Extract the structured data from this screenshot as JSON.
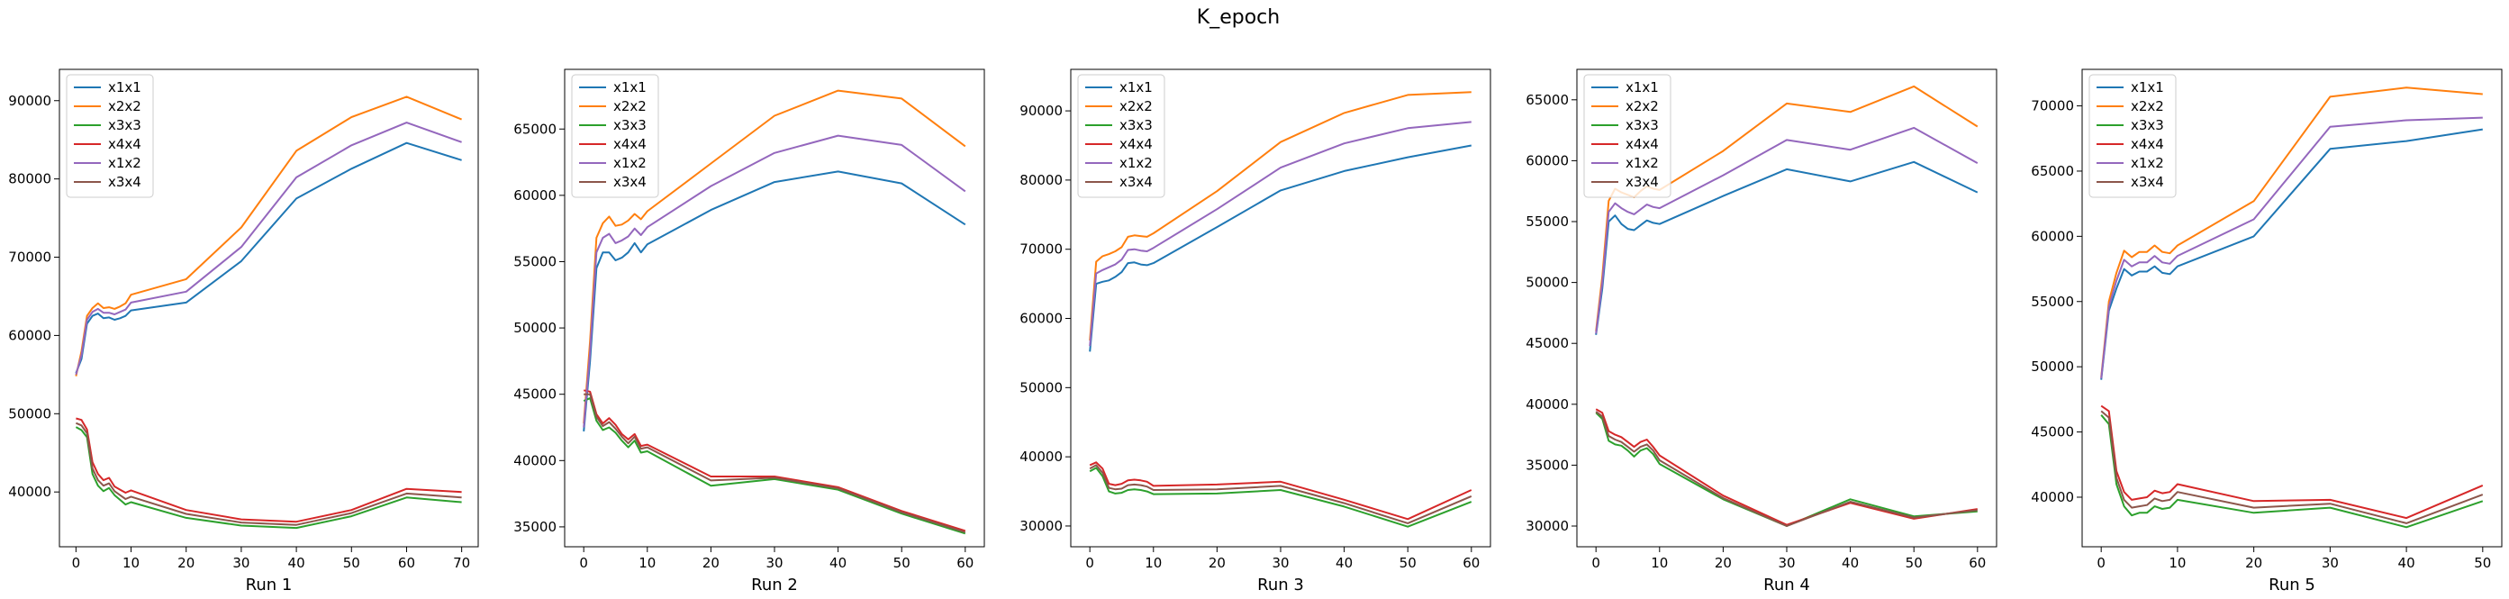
{
  "figure": {
    "title": "K_epoch"
  },
  "chart_data": [
    {
      "type": "line",
      "title": "",
      "xlabel": "Run 1",
      "ylabel": "",
      "xlim": [
        -3,
        73
      ],
      "ylim": [
        33000,
        94000
      ],
      "xticks": [
        0,
        10,
        20,
        30,
        40,
        50,
        60,
        70
      ],
      "yticks": [
        40000,
        50000,
        60000,
        70000,
        80000,
        90000
      ],
      "legend": "top-left",
      "x": [
        0,
        1,
        2,
        3,
        4,
        5,
        6,
        7,
        8,
        9,
        10,
        20,
        30,
        40,
        50,
        60,
        70
      ],
      "series": [
        {
          "name": "x1x1",
          "color": "#1f77b4",
          "values": [
            55200,
            57000,
            61500,
            62500,
            62800,
            62200,
            62300,
            62000,
            62200,
            62500,
            63200,
            64200,
            69500,
            77500,
            81300,
            84600,
            82400
          ]
        },
        {
          "name": "x2x2",
          "color": "#ff7f0e",
          "values": [
            54800,
            58000,
            62500,
            63500,
            64100,
            63500,
            63600,
            63400,
            63700,
            64100,
            65200,
            67200,
            73800,
            83600,
            87900,
            90500,
            87600
          ]
        },
        {
          "name": "x3x3",
          "color": "#2ca02c",
          "values": [
            48300,
            47900,
            47000,
            42300,
            40800,
            40100,
            40500,
            39600,
            39000,
            38400,
            38700,
            36700,
            35700,
            35400,
            36900,
            39300,
            38700
          ]
        },
        {
          "name": "x4x4",
          "color": "#d62728",
          "values": [
            49400,
            49200,
            48000,
            43800,
            42300,
            41500,
            41800,
            40700,
            40300,
            39900,
            40200,
            37700,
            36500,
            36200,
            37700,
            40400,
            40000
          ]
        },
        {
          "name": "x1x2",
          "color": "#9467bd",
          "values": [
            55000,
            57500,
            62000,
            63000,
            63400,
            62900,
            62900,
            62700,
            63000,
            63300,
            64200,
            65600,
            71300,
            80200,
            84300,
            87200,
            84700
          ]
        },
        {
          "name": "x3x4",
          "color": "#8c564b",
          "values": [
            48800,
            48500,
            47500,
            43000,
            41500,
            40800,
            41100,
            40100,
            39600,
            39100,
            39400,
            37200,
            36100,
            35800,
            37300,
            39800,
            39300
          ]
        }
      ]
    },
    {
      "type": "line",
      "title": "",
      "xlabel": "Run 2",
      "ylabel": "",
      "xlim": [
        -3,
        63
      ],
      "ylim": [
        33500,
        69500
      ],
      "xticks": [
        0,
        10,
        20,
        30,
        40,
        50,
        60
      ],
      "yticks": [
        35000,
        40000,
        45000,
        50000,
        55000,
        60000,
        65000
      ],
      "legend": "top-left",
      "x": [
        0,
        1,
        2,
        3,
        4,
        5,
        6,
        7,
        8,
        9,
        10,
        20,
        30,
        40,
        50,
        60
      ],
      "series": [
        {
          "name": "x1x1",
          "color": "#1f77b4",
          "values": [
            42200,
            47500,
            54500,
            55700,
            55700,
            55100,
            55300,
            55700,
            56400,
            55700,
            56300,
            58900,
            61000,
            61800,
            60900,
            57800
          ]
        },
        {
          "name": "x2x2",
          "color": "#ff7f0e",
          "values": [
            42800,
            49000,
            56800,
            57900,
            58400,
            57700,
            57800,
            58100,
            58600,
            58200,
            58800,
            62400,
            66000,
            67900,
            67300,
            63700
          ]
        },
        {
          "name": "x3x3",
          "color": "#2ca02c",
          "values": [
            44500,
            44700,
            43000,
            42300,
            42500,
            42100,
            41500,
            41000,
            41500,
            40600,
            40700,
            38100,
            38600,
            37800,
            36000,
            34500
          ]
        },
        {
          "name": "x4x4",
          "color": "#d62728",
          "values": [
            45300,
            45200,
            43500,
            42800,
            43200,
            42700,
            42000,
            41600,
            42000,
            41100,
            41200,
            38800,
            38800,
            38000,
            36200,
            34700
          ]
        },
        {
          "name": "x1x2",
          "color": "#9467bd",
          "values": [
            42500,
            48200,
            55700,
            56800,
            57100,
            56400,
            56600,
            56900,
            57500,
            57000,
            57600,
            60700,
            63200,
            64500,
            63800,
            60300
          ]
        },
        {
          "name": "x3x4",
          "color": "#8c564b",
          "values": [
            45000,
            45000,
            43300,
            42600,
            42900,
            42400,
            41800,
            41300,
            41800,
            40900,
            41000,
            38500,
            38700,
            37900,
            36100,
            34600
          ]
        }
      ]
    },
    {
      "type": "line",
      "title": "",
      "xlabel": "Run 3",
      "ylabel": "",
      "xlim": [
        -3,
        63
      ],
      "ylim": [
        27000,
        96000
      ],
      "xticks": [
        0,
        10,
        20,
        30,
        40,
        50,
        60
      ],
      "yticks": [
        30000,
        40000,
        50000,
        60000,
        70000,
        80000,
        90000
      ],
      "legend": "top-left",
      "x": [
        0,
        1,
        2,
        3,
        4,
        5,
        6,
        7,
        8,
        9,
        10,
        20,
        30,
        40,
        50,
        60
      ],
      "series": [
        {
          "name": "x1x1",
          "color": "#1f77b4",
          "values": [
            55200,
            65000,
            65300,
            65500,
            66000,
            66700,
            68000,
            68100,
            67800,
            67700,
            68000,
            73200,
            78500,
            81300,
            83300,
            85000
          ]
        },
        {
          "name": "x2x2",
          "color": "#ff7f0e",
          "values": [
            56800,
            68200,
            69000,
            69300,
            69700,
            70300,
            71800,
            72000,
            71900,
            71800,
            72300,
            78400,
            85500,
            89700,
            92300,
            92700
          ]
        },
        {
          "name": "x3x3",
          "color": "#2ca02c",
          "values": [
            37900,
            38400,
            37200,
            35000,
            34700,
            34800,
            35200,
            35300,
            35200,
            35000,
            34600,
            34700,
            35200,
            32800,
            29900,
            33500
          ]
        },
        {
          "name": "x4x4",
          "color": "#d62728",
          "values": [
            38800,
            39200,
            38300,
            36100,
            35900,
            36100,
            36600,
            36700,
            36600,
            36400,
            35800,
            36000,
            36400,
            33800,
            31000,
            35200
          ]
        },
        {
          "name": "x1x2",
          "color": "#9467bd",
          "values": [
            56000,
            66500,
            67000,
            67400,
            67800,
            68500,
            69900,
            70000,
            69800,
            69700,
            70200,
            75800,
            81800,
            85300,
            87500,
            88400
          ]
        },
        {
          "name": "x3x4",
          "color": "#8c564b",
          "values": [
            38300,
            38800,
            37700,
            35500,
            35300,
            35400,
            35900,
            36000,
            35900,
            35700,
            35200,
            35300,
            35800,
            33300,
            30400,
            34300
          ]
        }
      ]
    },
    {
      "type": "line",
      "title": "",
      "xlabel": "Run 4",
      "ylabel": "",
      "xlim": [
        -3,
        63
      ],
      "ylim": [
        28300,
        67500
      ],
      "xticks": [
        0,
        10,
        20,
        30,
        40,
        50,
        60
      ],
      "yticks": [
        30000,
        35000,
        40000,
        45000,
        50000,
        55000,
        60000,
        65000
      ],
      "legend": "top-left",
      "x": [
        0,
        1,
        2,
        3,
        4,
        5,
        6,
        7,
        8,
        9,
        10,
        20,
        30,
        40,
        50,
        60
      ],
      "series": [
        {
          "name": "x1x1",
          "color": "#1f77b4",
          "values": [
            45700,
            49500,
            55000,
            55500,
            54800,
            54400,
            54300,
            54700,
            55100,
            54900,
            54800,
            57100,
            59300,
            58300,
            59900,
            57400
          ]
        },
        {
          "name": "x2x2",
          "color": "#ff7f0e",
          "values": [
            46000,
            50500,
            56700,
            57700,
            57400,
            57200,
            57000,
            57500,
            57900,
            57700,
            57600,
            60800,
            64700,
            64000,
            66100,
            62800
          ]
        },
        {
          "name": "x3x3",
          "color": "#2ca02c",
          "values": [
            39300,
            38800,
            37000,
            36700,
            36600,
            36200,
            35700,
            36200,
            36400,
            35900,
            35100,
            32200,
            30000,
            32200,
            30800,
            31200
          ]
        },
        {
          "name": "x4x4",
          "color": "#d62728",
          "values": [
            39600,
            39300,
            37800,
            37500,
            37300,
            36900,
            36500,
            36900,
            37100,
            36500,
            35800,
            32500,
            30100,
            31900,
            30600,
            31400
          ]
        },
        {
          "name": "x1x2",
          "color": "#9467bd",
          "values": [
            45800,
            50000,
            55800,
            56500,
            56100,
            55800,
            55600,
            56000,
            56400,
            56200,
            56100,
            58800,
            61700,
            60900,
            62700,
            59800
          ]
        },
        {
          "name": "x3x4",
          "color": "#8c564b",
          "values": [
            39400,
            39000,
            37400,
            37100,
            36900,
            36500,
            36100,
            36500,
            36700,
            36200,
            35400,
            32300,
            30000,
            32000,
            30700,
            31300
          ]
        }
      ]
    },
    {
      "type": "line",
      "title": "",
      "xlabel": "Run 5",
      "ylabel": "",
      "xlim": [
        -2.5,
        52.5
      ],
      "ylim": [
        36200,
        72800
      ],
      "xticks": [
        0,
        10,
        20,
        30,
        40,
        50
      ],
      "yticks": [
        40000,
        45000,
        50000,
        55000,
        60000,
        65000,
        70000
      ],
      "legend": "top-left",
      "x": [
        0,
        1,
        2,
        3,
        4,
        5,
        6,
        7,
        8,
        9,
        10,
        20,
        30,
        40,
        50
      ],
      "series": [
        {
          "name": "x1x1",
          "color": "#1f77b4",
          "values": [
            49000,
            54300,
            56000,
            57500,
            57000,
            57300,
            57300,
            57700,
            57200,
            57100,
            57700,
            60000,
            66700,
            67300,
            68200
          ]
        },
        {
          "name": "x2x2",
          "color": "#ff7f0e",
          "values": [
            49200,
            55000,
            57200,
            58900,
            58400,
            58800,
            58800,
            59300,
            58800,
            58700,
            59300,
            62700,
            70700,
            71400,
            70900
          ]
        },
        {
          "name": "x3x3",
          "color": "#2ca02c",
          "values": [
            46300,
            45600,
            41000,
            39300,
            38600,
            38800,
            38800,
            39300,
            39100,
            39200,
            39800,
            38800,
            39200,
            37700,
            39700
          ]
        },
        {
          "name": "x4x4",
          "color": "#d62728",
          "values": [
            47000,
            46600,
            42000,
            40400,
            39800,
            39900,
            40000,
            40500,
            40300,
            40400,
            41000,
            39700,
            39800,
            38400,
            40900
          ]
        },
        {
          "name": "x1x2",
          "color": "#9467bd",
          "values": [
            49100,
            54600,
            56600,
            58200,
            57700,
            58000,
            58000,
            58500,
            58000,
            57900,
            58500,
            61300,
            68400,
            68900,
            69100
          ]
        },
        {
          "name": "x3x4",
          "color": "#8c564b",
          "values": [
            46600,
            46100,
            41500,
            39800,
            39200,
            39300,
            39400,
            39900,
            39700,
            39800,
            40400,
            39200,
            39500,
            38000,
            40200
          ]
        }
      ]
    }
  ]
}
